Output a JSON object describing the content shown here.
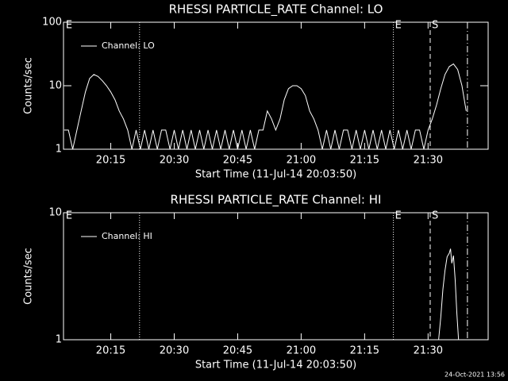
{
  "chart_data": [
    {
      "type": "line",
      "title": "RHESSI PARTICLE_RATE Channel: LO",
      "x_label": "Start Time (11-Jul-14 20:03:50)",
      "y_label": "Counts/sec",
      "log_y": true,
      "xlim": [
        3.83,
        104.2
      ],
      "xticks": [
        {
          "value": 15,
          "label": "20:15"
        },
        {
          "value": 30,
          "label": "20:30"
        },
        {
          "value": 45,
          "label": "20:45"
        },
        {
          "value": 60,
          "label": "21:00"
        },
        {
          "value": 75,
          "label": "21:15"
        },
        {
          "value": 90,
          "label": "21:30"
        }
      ],
      "ylim": [
        1,
        100
      ],
      "yticks": [
        1,
        10,
        100
      ],
      "markers": [
        {
          "x": 21.8,
          "style": "dotted"
        },
        {
          "x": 81.8,
          "style": "dotted"
        },
        {
          "x": 90.5,
          "style": "dashed"
        },
        {
          "x": 99.3,
          "style": "dashdot"
        }
      ],
      "annotations": [
        {
          "text": "E",
          "x": 4.0
        },
        {
          "text": "E",
          "x": 81.8
        },
        {
          "text": "S",
          "x": 90.5
        }
      ],
      "series": [
        {
          "name": "Channel: LO",
          "color": "#ffffff",
          "x": [
            4,
            5,
            6,
            7,
            8,
            9,
            10,
            11,
            12,
            13,
            14,
            15,
            16,
            17,
            18,
            19,
            20,
            21,
            22,
            23,
            24,
            25,
            26,
            27,
            28,
            29,
            30,
            31,
            32,
            33,
            34,
            35,
            36,
            37,
            38,
            39,
            40,
            41,
            42,
            43,
            44,
            45,
            46,
            47,
            48,
            49,
            50,
            51,
            52,
            53,
            54,
            55,
            56,
            57,
            58,
            59,
            60,
            61,
            62,
            63,
            64,
            65,
            66,
            67,
            68,
            69,
            70,
            71,
            72,
            73,
            74,
            75,
            76,
            77,
            78,
            79,
            80,
            81,
            82,
            83,
            84,
            85,
            86,
            87,
            88,
            89,
            90,
            91,
            92,
            93,
            94,
            95,
            96,
            97,
            98,
            99
          ],
          "values": [
            2,
            2,
            1,
            2,
            4,
            8,
            13,
            15,
            14,
            12,
            10,
            8,
            6,
            4,
            3,
            2,
            1,
            2,
            1,
            2,
            1,
            2,
            1,
            2,
            2,
            1,
            2,
            1,
            2,
            1,
            2,
            1,
            2,
            1,
            2,
            1,
            2,
            1,
            2,
            1,
            2,
            1,
            2,
            1,
            2,
            1,
            2,
            2,
            4,
            3,
            2,
            3,
            6,
            9,
            10,
            10,
            9,
            7,
            4,
            3,
            2,
            1,
            2,
            1,
            2,
            1,
            2,
            2,
            1,
            2,
            1,
            2,
            1,
            2,
            1,
            2,
            1,
            2,
            1,
            2,
            1,
            2,
            1,
            2,
            2,
            1,
            2,
            3,
            5,
            9,
            15,
            20,
            22,
            18,
            10,
            4
          ]
        }
      ]
    },
    {
      "type": "line",
      "title": "RHESSI PARTICLE_RATE Channel: HI",
      "x_label": "Start Time (11-Jul-14 20:03:50)",
      "y_label": "Counts/sec",
      "log_y": true,
      "xlim": [
        3.83,
        104.2
      ],
      "xticks": [
        {
          "value": 15,
          "label": "20:15"
        },
        {
          "value": 30,
          "label": "20:30"
        },
        {
          "value": 45,
          "label": "20:45"
        },
        {
          "value": 60,
          "label": "21:00"
        },
        {
          "value": 75,
          "label": "21:15"
        },
        {
          "value": 90,
          "label": "21:30"
        }
      ],
      "ylim": [
        1,
        10
      ],
      "yticks": [
        1,
        10
      ],
      "markers": [
        {
          "x": 21.8,
          "style": "dotted"
        },
        {
          "x": 81.8,
          "style": "dotted"
        },
        {
          "x": 90.5,
          "style": "dashed"
        },
        {
          "x": 99.3,
          "style": "dashdot"
        }
      ],
      "annotations": [
        {
          "text": "E",
          "x": 4.0
        },
        {
          "text": "E",
          "x": 81.8
        },
        {
          "text": "S",
          "x": 90.5
        }
      ],
      "series": [
        {
          "name": "Channel: HI",
          "color": "#ffffff",
          "x": [
            92.5,
            93,
            93.5,
            94,
            94.5,
            95,
            95.3,
            95.6,
            96,
            96.4,
            96.8,
            97.2
          ],
          "values": [
            1,
            1.5,
            2.5,
            3.5,
            4.5,
            4.8,
            5.2,
            4,
            4.6,
            3,
            1.6,
            1
          ]
        }
      ]
    }
  ],
  "footer": "24-Oct-2021 13:56"
}
